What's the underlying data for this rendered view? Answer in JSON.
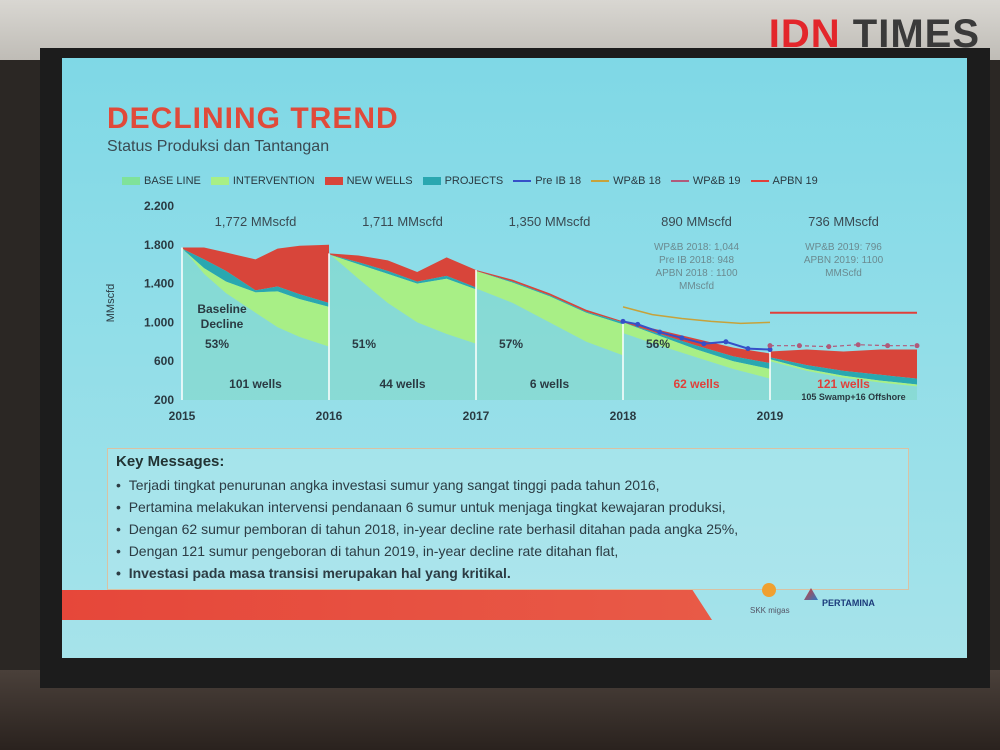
{
  "logo": {
    "part1": "IDN",
    "part2": "TIMES"
  },
  "slide": {
    "title": "DECLINING TREND",
    "subtitle": "Status Produksi dan Tantangan"
  },
  "legend": [
    {
      "label": "BASE LINE",
      "kind": "area",
      "color": "#7fe29a"
    },
    {
      "label": "INTERVENTION",
      "kind": "area",
      "color": "#a8ef86"
    },
    {
      "label": "NEW WELLS",
      "kind": "area",
      "color": "#d8453a"
    },
    {
      "label": "PROJECTS",
      "kind": "area",
      "color": "#2aa7b0"
    },
    {
      "label": "Pre IB 18",
      "kind": "line",
      "color": "#3550c8"
    },
    {
      "label": "WP&B 18",
      "kind": "line",
      "color": "#c7a23a"
    },
    {
      "label": "WP&B 19",
      "kind": "line",
      "color": "#b05a7a"
    },
    {
      "label": "APBN 19",
      "kind": "line",
      "color": "#e0403a"
    }
  ],
  "chart_data": {
    "type": "area",
    "ylabel": "MMscfd",
    "ylim": [
      200,
      2200
    ],
    "yticks": [
      "2.200",
      "1.800",
      "1.400",
      "1.000",
      "600",
      "200"
    ],
    "ytick_values": [
      2200,
      1800,
      1400,
      1000,
      600,
      200
    ],
    "xticks": [
      "2015",
      "2016",
      "2017",
      "2018",
      "2019"
    ],
    "xtick_values": [
      2015,
      2016,
      2017,
      2018,
      2019
    ],
    "segments": [
      {
        "x": [
          2015.0,
          2015.15,
          2015.3,
          2015.5,
          2015.65,
          2015.8,
          2016.0
        ],
        "total": [
          1772,
          1772,
          1720,
          1650,
          1760,
          1790,
          1800
        ],
        "baseline": [
          1760,
          1650,
          1530,
          1330,
          1370,
          1290,
          1200
        ],
        "intervention": [
          1760,
          1560,
          1420,
          1310,
          1320,
          1240,
          1160
        ],
        "baseline_floor": [
          1772,
          1500,
          1300,
          1100,
          950,
          850,
          750
        ],
        "segment_label": "1,772 MMscfd",
        "decline_label": "53%",
        "wells_label": "101 wells"
      },
      {
        "x": [
          2016.0,
          2016.2,
          2016.4,
          2016.6,
          2016.8,
          2017.0
        ],
        "total": [
          1711,
          1690,
          1640,
          1520,
          1670,
          1540
        ],
        "baseline": [
          1700,
          1620,
          1530,
          1420,
          1480,
          1360
        ],
        "intervention": [
          1700,
          1600,
          1500,
          1400,
          1450,
          1340
        ],
        "baseline_floor": [
          1711,
          1450,
          1200,
          1000,
          880,
          780
        ],
        "segment_label": "1,711 MMscfd",
        "decline_label": "51%",
        "wells_label": "44 wells"
      },
      {
        "x": [
          2017.0,
          2017.25,
          2017.5,
          2017.75,
          2018.0
        ],
        "total": [
          1540,
          1440,
          1300,
          1130,
          1010
        ],
        "baseline": [
          1530,
          1420,
          1280,
          1110,
          1000
        ],
        "intervention": [
          1530,
          1410,
          1270,
          1100,
          980
        ],
        "baseline_floor": [
          1350,
          1200,
          1000,
          800,
          660
        ],
        "segment_label": "1,350 MMscfd",
        "decline_label": "57%",
        "wells_label": "6 wells"
      },
      {
        "x": [
          2018.0,
          2018.25,
          2018.5,
          2018.75,
          2019.0
        ],
        "total": [
          1010,
          920,
          830,
          740,
          680
        ],
        "baseline": [
          1000,
          880,
          760,
          650,
          580
        ],
        "intervention": [
          1000,
          860,
          720,
          600,
          520
        ],
        "baseline_floor": [
          890,
          760,
          640,
          520,
          420
        ],
        "segment_label": "890 MMscfd",
        "decline_label": "56%",
        "wells_label": "62 wells",
        "notes": [
          "WP&B 2018: 1,044",
          "Pre IB 2018: 948",
          "APBN 2018 : 1100",
          "MMscfd"
        ]
      },
      {
        "x": [
          2019.0,
          2019.25,
          2019.5,
          2019.75,
          2020.0
        ],
        "total": [
          700,
          720,
          700,
          720,
          720
        ],
        "baseline": [
          640,
          560,
          500,
          460,
          420
        ],
        "intervention": [
          620,
          520,
          450,
          400,
          360
        ],
        "baseline_floor": [
          600,
          500,
          430,
          380,
          340
        ],
        "segment_label": "736 MMscfd",
        "wells_label": "121 wells",
        "wells_sub": "105 Swamp+16 Offshore",
        "notes": [
          "WP&B 2019: 796",
          "APBN 2019: 1100",
          "MMScfd"
        ]
      }
    ],
    "lines": [
      {
        "name": "Pre IB 18",
        "x": [
          2018.0,
          2018.1,
          2018.25,
          2018.4,
          2018.55,
          2018.7,
          2018.85,
          2019.0
        ],
        "y": [
          1010,
          980,
          900,
          840,
          780,
          800,
          730,
          720
        ]
      },
      {
        "name": "WP&B 18",
        "x": [
          2018.0,
          2018.2,
          2018.4,
          2018.6,
          2018.8,
          2019.0
        ],
        "y": [
          1160,
          1080,
          1040,
          1010,
          990,
          1000
        ]
      },
      {
        "name": "WP&B 19",
        "x": [
          2019.0,
          2019.2,
          2019.4,
          2019.6,
          2019.8,
          2020.0
        ],
        "y": [
          760,
          760,
          750,
          770,
          760,
          760
        ]
      },
      {
        "name": "APBN 19",
        "x": [
          2019.0,
          2020.0
        ],
        "y": [
          1100,
          1100
        ]
      }
    ],
    "baseline_label": "Baseline\nDecline"
  },
  "messages": {
    "title": "Key Messages:",
    "items": [
      "Terjadi tingkat penurunan angka investasi sumur yang sangat tinggi pada tahun 2016,",
      "Pertamina melakukan intervensi pendanaan 6 sumur untuk menjaga tingkat kewajaran produksi,",
      "Dengan 62 sumur pemboran di tahun 2018, in-year decline rate berhasil ditahan pada angka 25%,",
      "Dengan 121 sumur pengeboran di tahun 2019, in-year decline rate ditahan flat,",
      "Investasi pada masa transisi merupakan hal yang kritikal."
    ]
  },
  "footer": {
    "logo1": "SKK migas",
    "logo2": "PERTAMINA"
  }
}
